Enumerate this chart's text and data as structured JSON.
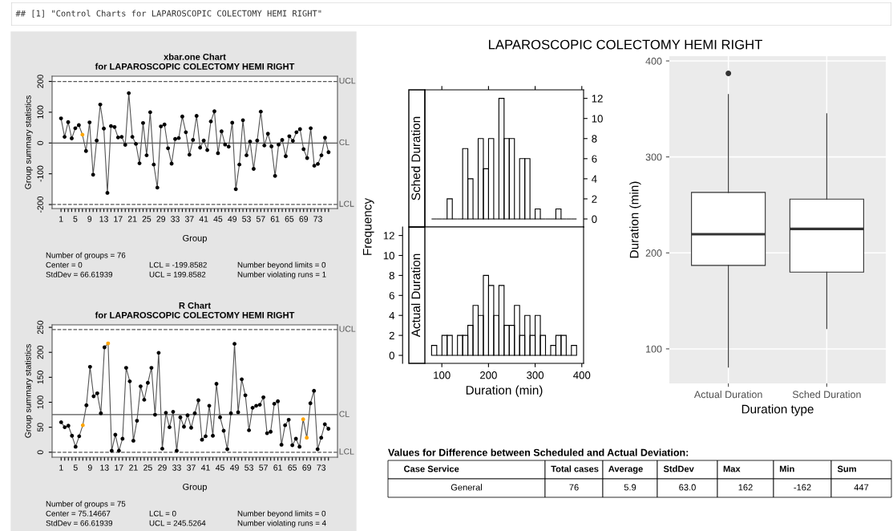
{
  "chart_data": [
    {
      "type": "other",
      "annotations": [
        "## [1] \"Control Charts for LAPAROSCOPIC COLECTOMY HEMI RIGHT\""
      ]
    },
    {
      "type": "line",
      "title": "xbar.one Chart\nfor LAPAROSCOPIC COLECTOMY HEMI RIGHT",
      "xlabel": "Group",
      "ylabel": "Group summary statistics",
      "marker": "circle",
      "grid": false,
      "categories": [
        "1",
        null,
        null,
        null,
        "5",
        null,
        null,
        null,
        "9",
        null,
        null,
        null,
        "13",
        null,
        null,
        null,
        "17",
        null,
        null,
        null,
        "21",
        null,
        null,
        null,
        "25",
        null,
        null,
        null,
        "29",
        null,
        null,
        null,
        "33",
        null,
        null,
        null,
        "37",
        null,
        null,
        null,
        "41",
        null,
        null,
        null,
        "45",
        null,
        null,
        null,
        "49",
        null,
        null,
        null,
        "53",
        null,
        null,
        null,
        "57",
        null,
        null,
        null,
        "61",
        null,
        null,
        null,
        "65",
        null,
        null,
        null,
        "69",
        null,
        null,
        null,
        "73",
        null,
        null,
        null
      ],
      "series": [
        {
          "color": "#555555",
          "colors": [
            "#000000",
            "#000000",
            "#000000",
            "#000000",
            "#000000",
            "#000000",
            "#ffa500",
            "#000000",
            "#000000",
            "#000000",
            "#000000",
            "#000000",
            "#000000",
            "#000000",
            "#000000",
            "#000000",
            "#000000",
            "#000000",
            "#000000",
            "#000000",
            "#000000",
            "#000000",
            "#000000",
            "#000000",
            "#000000",
            "#000000",
            "#000000",
            "#000000",
            "#000000",
            "#000000",
            "#000000",
            "#000000",
            "#000000",
            "#000000",
            "#000000",
            "#000000",
            "#000000",
            "#000000",
            "#000000",
            "#000000",
            "#000000",
            "#000000",
            "#000000",
            "#000000",
            "#000000",
            "#000000",
            "#000000",
            "#000000",
            "#000000",
            "#000000",
            "#000000",
            "#000000",
            "#000000",
            "#000000",
            "#000000",
            "#000000",
            "#000000",
            "#000000",
            "#000000",
            "#000000",
            "#000000",
            "#000000",
            "#000000",
            "#000000",
            "#000000",
            "#000000",
            "#000000",
            "#000000",
            "#000000",
            "#000000",
            "#000000",
            "#000000",
            "#000000",
            "#000000",
            "#000000",
            "#000000"
          ],
          "values": [
            80,
            20,
            68,
            15,
            48,
            58,
            27,
            -26,
            67,
            -103,
            8,
            125,
            47,
            -162,
            55,
            52,
            18,
            20,
            -6,
            162,
            20,
            -3,
            -66,
            65,
            -40,
            100,
            -70,
            -145,
            54,
            60,
            -17,
            -67,
            13,
            16,
            86,
            35,
            -38,
            10,
            88,
            -15,
            8,
            -23,
            70,
            103,
            -33,
            38,
            -5,
            -12,
            66,
            -150,
            -70,
            74,
            -40,
            5,
            -84,
            8,
            102,
            -8,
            30,
            -11,
            -107,
            -5,
            10,
            -43,
            22,
            7,
            35,
            45,
            -20,
            -49,
            48,
            -74,
            -68,
            -40,
            17,
            -30
          ]
        }
      ],
      "ylim": [
        -213,
        217
      ],
      "yticks": [
        -200,
        -100,
        0,
        100,
        200
      ],
      "ref_lines": [
        {
          "axis": "y",
          "value": 199.8582,
          "label": "UCL",
          "line_style": "dashed",
          "color": "#555555"
        },
        {
          "axis": "y",
          "value": 0,
          "label": "CL",
          "line_style": "solid",
          "color": "#555555"
        },
        {
          "axis": "y",
          "value": -199.8582,
          "label": "LCL",
          "line_style": "dashed",
          "color": "#555555"
        }
      ],
      "annotations": [
        "Number of groups = 76",
        "Center = 0",
        "LCL = -199.8582",
        "Number beyond limits = 0",
        "StdDev = 66.61939",
        "UCL = 199.8582",
        "Number violating runs = 1"
      ]
    },
    {
      "type": "line",
      "title": "R Chart\nfor LAPAROSCOPIC COLECTOMY HEMI RIGHT",
      "xlabel": "Group",
      "ylabel": "Group summary statistics",
      "marker": "circle",
      "grid": false,
      "categories": [
        "1",
        null,
        null,
        null,
        "5",
        null,
        null,
        null,
        "9",
        null,
        null,
        null,
        "13",
        null,
        null,
        null,
        "17",
        null,
        null,
        null,
        "21",
        null,
        null,
        null,
        "25",
        null,
        null,
        null,
        "29",
        null,
        null,
        null,
        "33",
        null,
        null,
        null,
        "37",
        null,
        null,
        null,
        "41",
        null,
        null,
        null,
        "45",
        null,
        null,
        null,
        "49",
        null,
        null,
        null,
        "53",
        null,
        null,
        null,
        "57",
        null,
        null,
        null,
        "61",
        null,
        null,
        null,
        "65",
        null,
        null,
        null,
        "69",
        null,
        null,
        null,
        "73",
        null,
        null
      ],
      "series": [
        {
          "color": "#555555",
          "colors": [
            "#000000",
            "#000000",
            "#000000",
            "#000000",
            "#000000",
            "#000000",
            "#ffa500",
            "#000000",
            "#000000",
            "#000000",
            "#000000",
            "#000000",
            "#000000",
            "#ffa500",
            "#000000",
            "#000000",
            "#000000",
            "#000000",
            "#000000",
            "#000000",
            "#000000",
            "#000000",
            "#000000",
            "#000000",
            "#000000",
            "#000000",
            "#000000",
            "#000000",
            "#000000",
            "#000000",
            "#000000",
            "#000000",
            "#000000",
            "#000000",
            "#000000",
            "#000000",
            "#000000",
            "#000000",
            "#000000",
            "#000000",
            "#000000",
            "#000000",
            "#000000",
            "#000000",
            "#000000",
            "#000000",
            "#000000",
            "#000000",
            "#000000",
            "#000000",
            "#000000",
            "#000000",
            "#000000",
            "#000000",
            "#000000",
            "#000000",
            "#000000",
            "#000000",
            "#000000",
            "#000000",
            "#000000",
            "#000000",
            "#000000",
            "#000000",
            "#000000",
            "#000000",
            "#000000",
            "#ffa500",
            "#ffa500",
            "#000000",
            "#000000",
            "#000000",
            "#000000",
            "#000000",
            "#000000"
          ],
          "values": [
            60,
            50,
            53,
            33,
            11,
            32,
            54,
            94,
            171,
            112,
            118,
            78,
            210,
            218,
            3,
            35,
            3,
            27,
            169,
            142,
            23,
            63,
            132,
            105,
            139,
            169,
            75,
            199,
            7,
            79,
            50,
            81,
            3,
            70,
            51,
            74,
            49,
            78,
            104,
            25,
            32,
            93,
            33,
            137,
            70,
            43,
            6,
            78,
            217,
            80,
            146,
            114,
            44,
            89,
            93,
            95,
            110,
            38,
            41,
            97,
            102,
            15,
            54,
            65,
            14,
            27,
            11,
            66,
            29,
            98,
            123,
            6,
            29,
            56,
            47
          ]
        }
      ],
      "ylim": [
        -10,
        255
      ],
      "yticks": [
        0,
        50,
        100,
        150,
        200,
        250
      ],
      "ref_lines": [
        {
          "axis": "y",
          "value": 245.5264,
          "label": "UCL",
          "line_style": "dashed",
          "color": "#555555"
        },
        {
          "axis": "y",
          "value": 75.14667,
          "label": "CL",
          "line_style": "solid",
          "color": "#555555"
        },
        {
          "axis": "y",
          "value": 0,
          "label": "LCL",
          "line_style": "dashed",
          "color": "#555555"
        }
      ],
      "annotations": [
        "Number of groups = 75",
        "Center = 75.14667",
        "LCL = 0",
        "Number beyond limits = 0",
        "StdDev = 66.61939",
        "UCL = 245.5264",
        "Number violating runs = 4"
      ]
    },
    {
      "type": "histogram",
      "title": "Sched Duration",
      "color": "#000000",
      "tick_labels": "y",
      "bins": [
        78,
        89.1,
        100.2,
        111.3,
        122.4,
        133.5,
        144.6,
        155.7,
        166.8,
        177.9,
        189,
        200.1,
        211.2,
        222.3,
        233.4,
        244.5,
        255.6,
        266.7,
        277.8,
        288.9,
        300,
        311.1,
        322.2,
        333.3,
        344.4,
        355.5,
        366.6,
        377.7,
        388.8
      ],
      "values": [
        0,
        0,
        0,
        2,
        0,
        0,
        7,
        4,
        0,
        8,
        5,
        8,
        0,
        12,
        8,
        8,
        0,
        6,
        6,
        0,
        1,
        0,
        0,
        0,
        1,
        0,
        0,
        0
      ],
      "xlim": [
        63.6,
        403.8
      ],
      "xticks": [
        100,
        200,
        300,
        400
      ],
      "ylim": [
        -0.8,
        12.85
      ],
      "yticks": [
        0,
        2,
        4,
        6,
        8,
        10,
        12
      ]
    },
    {
      "type": "histogram",
      "title": "Actual Duration",
      "color": "#000000",
      "xlabel": "Duration (min)",
      "ylabel": "Frequency",
      "bins": [
        78,
        89.1,
        100.2,
        111.3,
        122.4,
        133.5,
        144.6,
        155.7,
        166.8,
        177.9,
        189,
        200.1,
        211.2,
        222.3,
        233.4,
        244.5,
        255.6,
        266.7,
        277.8,
        288.9,
        300,
        311.1,
        322.2,
        333.3,
        344.4,
        355.5,
        366.6,
        377.7,
        388.8
      ],
      "values": [
        1,
        0,
        2,
        2,
        0,
        2,
        2,
        3,
        5,
        4,
        8,
        7,
        4,
        7,
        3,
        3,
        5,
        2,
        4,
        2,
        4,
        2,
        0,
        1,
        2,
        2,
        0,
        1
      ],
      "xlim": [
        63.6,
        403.8
      ],
      "xticks": [
        100,
        200,
        300,
        400
      ],
      "ylim": [
        -0.8,
        12.85
      ],
      "yticks": [
        0,
        2,
        4,
        6,
        8,
        10,
        12
      ]
    },
    {
      "type": "box",
      "title": "LAPAROSCOPIC COLECTOMY HEMI RIGHT",
      "xlabel": "Duration type",
      "ylabel": "Duration (min)",
      "grid": true,
      "color": "#333333",
      "categories": [
        "Actual Duration",
        "Sched Duration"
      ],
      "boxes": [
        {
          "low": 81,
          "q1": 187,
          "median": 219.5,
          "q3": 263,
          "high": 365,
          "outliers": [
            387
          ]
        },
        {
          "low": 121,
          "q1": 180,
          "median": 225,
          "q3": 256,
          "high": 345
        }
      ],
      "ylim": [
        64,
        405
      ],
      "yticks": [
        100,
        200,
        300,
        400
      ]
    },
    {
      "type": "other",
      "title": "Values for Difference between Scheduled and Actual Deviation:",
      "categories": [
        "Case Service",
        "Total cases",
        "Average",
        "StdDev",
        "Max",
        "Min",
        "Sum"
      ],
      "value_labels": [
        "General",
        "76",
        "5.9",
        "63.0",
        "162",
        "-162",
        "447"
      ]
    }
  ]
}
